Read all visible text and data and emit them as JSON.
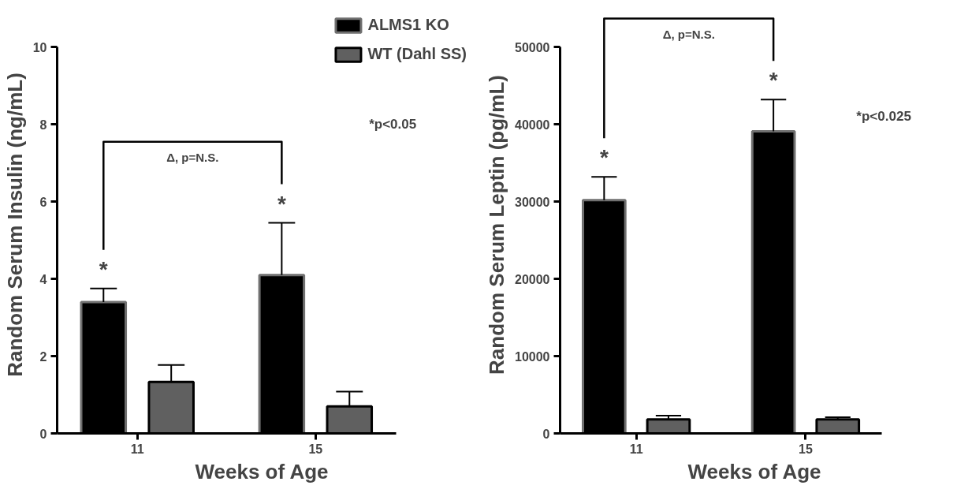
{
  "chart_data": [
    {
      "type": "bar",
      "xlabel": "Weeks of Age",
      "ylabel": "Random Serum Insulin (ng/mL)",
      "categories": [
        "11",
        "15"
      ],
      "series": [
        {
          "name": "ALMS1 KO",
          "color": "#000000",
          "values": [
            3.4,
            4.1
          ],
          "errors": [
            [
              3.4,
              3.75
            ],
            [
              4.1,
              5.45
            ]
          ]
        },
        {
          "name": "WT (Dahl SS)",
          "color": "#606060",
          "values": [
            1.33,
            0.7
          ],
          "errors": [
            [
              1.33,
              1.77
            ],
            [
              0.7,
              1.08
            ]
          ]
        }
      ],
      "ylim": [
        0,
        10
      ],
      "yticks": [
        0,
        2,
        4,
        6,
        8,
        10
      ],
      "grid": false,
      "legend": "top right",
      "annotations": [
        "Δ, p=N.S.",
        "*p<0.05",
        "*",
        "*"
      ]
    },
    {
      "type": "bar",
      "xlabel": "Weeks of Age",
      "ylabel": "Random Serum Leptin (pg/mL)",
      "categories": [
        "11",
        "15"
      ],
      "series": [
        {
          "color": "#000000",
          "values": [
            30200,
            39100
          ],
          "errors": [
            [
              30200,
              33200
            ],
            [
              39100,
              43200
            ]
          ]
        },
        {
          "color": "#606060",
          "values": [
            1800,
            1800
          ],
          "errors": [
            [
              1800,
              2300
            ],
            [
              1800,
              2100
            ]
          ]
        }
      ],
      "ylim": [
        0,
        50000
      ],
      "yticks": [
        0,
        10000,
        20000,
        30000,
        40000,
        50000
      ],
      "grid": false,
      "legend": false,
      "annotations": [
        "Δ, p=N.S.",
        "*p<0.025",
        "*",
        "*"
      ]
    }
  ]
}
